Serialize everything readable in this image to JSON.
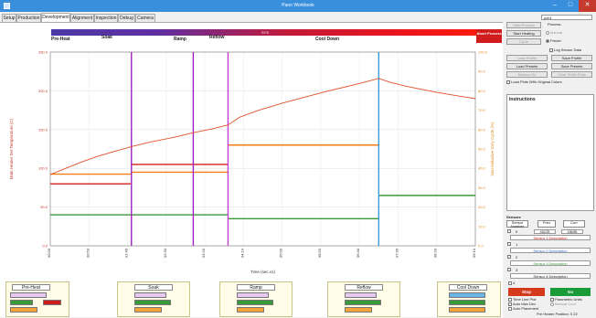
{
  "window": {
    "title": "Pano Workbook"
  },
  "tabs": [
    {
      "label": "Setup"
    },
    {
      "label": "Production"
    },
    {
      "label": "Development"
    },
    {
      "label": "Alignment"
    },
    {
      "label": "Inspection"
    },
    {
      "label": "Debug"
    },
    {
      "label": "Camera"
    }
  ],
  "phase_bar": {
    "label": "SYS"
  },
  "phases_top": [
    {
      "label": "Pre-Heat"
    },
    {
      "label": "Soak"
    },
    {
      "label": "Ramp"
    },
    {
      "label": "Reflow"
    },
    {
      "label": "Cool Down"
    }
  ],
  "abort_button": {
    "label": "Abort Process"
  },
  "chart_data": {
    "type": "line",
    "ylabel": "Main Heater Set Temperature (C)",
    "y2label": "Non-Inductive Duty Cycle (%)",
    "xlabel": "Time (sec.cs)",
    "ylim": [
      0,
      250
    ],
    "y2lim": [
      0,
      100
    ],
    "yticks": [
      "0.0",
      "50.0",
      "100.0",
      "150.0",
      "200.0",
      "250.0"
    ],
    "y2ticks": [
      "0.0",
      "10.0",
      "20.0",
      "30.0",
      "40.0",
      "50.0",
      "60.0",
      "70.0",
      "80.0",
      "90.0",
      "100.0"
    ],
    "xticks": [
      "00:00",
      "00:50",
      "01:40",
      "02:30",
      "03:20",
      "04:10",
      "05:00",
      "05:50",
      "06:40",
      "07:30",
      "08:20",
      "09:10"
    ],
    "xlim": [
      0,
      550
    ],
    "phase_lines": [
      {
        "name": "soak-start",
        "t": 105,
        "color": "#a020c0"
      },
      {
        "name": "soak-mid",
        "t": 185,
        "color": "#a020c0"
      },
      {
        "name": "ramp-start",
        "t": 230,
        "color": "#c040d0"
      },
      {
        "name": "cooldown-start",
        "t": 425,
        "color": "#3a9ad8"
      }
    ],
    "temperature_curve": {
      "color": "#e0502a",
      "x": [
        0,
        20,
        40,
        60,
        80,
        105,
        130,
        160,
        185,
        210,
        230,
        245,
        270,
        300,
        330,
        360,
        390,
        410,
        425,
        440,
        460,
        480,
        500,
        530,
        560
      ],
      "y": [
        92,
        100,
        108,
        115,
        121,
        128,
        134,
        140,
        146,
        151,
        156,
        166,
        175,
        184,
        192,
        200,
        207,
        212,
        216,
        211,
        206,
        202,
        198,
        193,
        190
      ]
    },
    "setpoints": [
      {
        "name": "preheat-orange",
        "color": "#f07d17",
        "t0": 0,
        "t1": 105,
        "y2": 37
      },
      {
        "name": "preheat-red",
        "color": "#d61f1f",
        "t0": 0,
        "t1": 105,
        "y2": 32
      },
      {
        "name": "preheat-green",
        "color": "#3a9a3a",
        "t0": 0,
        "t1": 105,
        "y2": 16
      },
      {
        "name": "soak-red",
        "color": "#d61f1f",
        "t0": 105,
        "t1": 230,
        "y2": 42
      },
      {
        "name": "soak-orange",
        "color": "#f07d17",
        "t0": 105,
        "t1": 230,
        "y2": 38
      },
      {
        "name": "soak-green",
        "color": "#3a9a3a",
        "t0": 105,
        "t1": 230,
        "y2": 16
      },
      {
        "name": "ramp-orange",
        "color": "#f07d17",
        "t0": 230,
        "t1": 425,
        "y2": 52
      },
      {
        "name": "ramp-green",
        "color": "#3a9a3a",
        "t0": 230,
        "t1": 425,
        "y2": 14
      },
      {
        "name": "cool-green",
        "color": "#3a9a3a",
        "t0": 425,
        "t1": 560,
        "y2": 26
      }
    ]
  },
  "phase_panels": [
    {
      "title": "Pre-Heat",
      "r1": "Time",
      "r2": "Temp",
      "r3": "Duty",
      "color": "#d01c1c"
    },
    {
      "title": "Soak",
      "r1": "Time",
      "r2": "Temp",
      "r3": "Duty",
      "color": "#9a9a9a"
    },
    {
      "title": "Ramp",
      "r1": "Time",
      "r2": "Temp",
      "r3": "Duty",
      "color": "#9a9a9a"
    },
    {
      "title": "Reflow",
      "r1": "Time",
      "r2": "Temp",
      "r3": "Duty",
      "color": "#9a9a9a"
    },
    {
      "title": "Cool Down",
      "r1": "Time",
      "r2": "Temp",
      "r3": "Duty",
      "color": "#9a9a9a"
    }
  ],
  "sidebar": {
    "profile_name": "pcb1",
    "process_label": "Process",
    "start_process": "Start Process",
    "start_heating": "Start Heating",
    "cycle_label": "Cycle",
    "manual_label": "Manual",
    "preset_label": "Preset",
    "log_sensor": "Log Sensor Data",
    "load_profile": "Load Profile",
    "save_profile": "Save Profile",
    "load_presets": "Load Presets",
    "save_presets": "Save Presets",
    "monitor_on": "Monitor On",
    "clear_presets": "Clear Prefix Plots",
    "load_plots": "Load Plots With Original Colors",
    "instructions": "Instructions",
    "sensors_label": "Sensors",
    "sensor_hdr": [
      "Sensor Number",
      "Prev",
      "Curr"
    ],
    "sensors": [
      {
        "num": "0",
        "prev": "452/25",
        "curr": "185/85",
        "desc": "Sensor 1 Description"
      },
      {
        "num": "1",
        "prev": "",
        "curr": "",
        "desc": "Sensor 2 Description"
      },
      {
        "num": "2",
        "prev": "",
        "curr": "",
        "desc": "Sensor 3 Description"
      },
      {
        "num": "3",
        "prev": "",
        "curr": "",
        "desc": "Sensor 4 Description"
      }
    ],
    "sensor_count": "4",
    "stop_label": "Stop",
    "go_label": "Go",
    "time_line": "Time Line Plot",
    "parametric": "Parametric Units",
    "auto_max": "Auto Max Dev",
    "manual_cmd": "Manual Cmd",
    "auto_placement": "Auto Placement",
    "preheater": "Pre Heater Position: 0  22"
  }
}
